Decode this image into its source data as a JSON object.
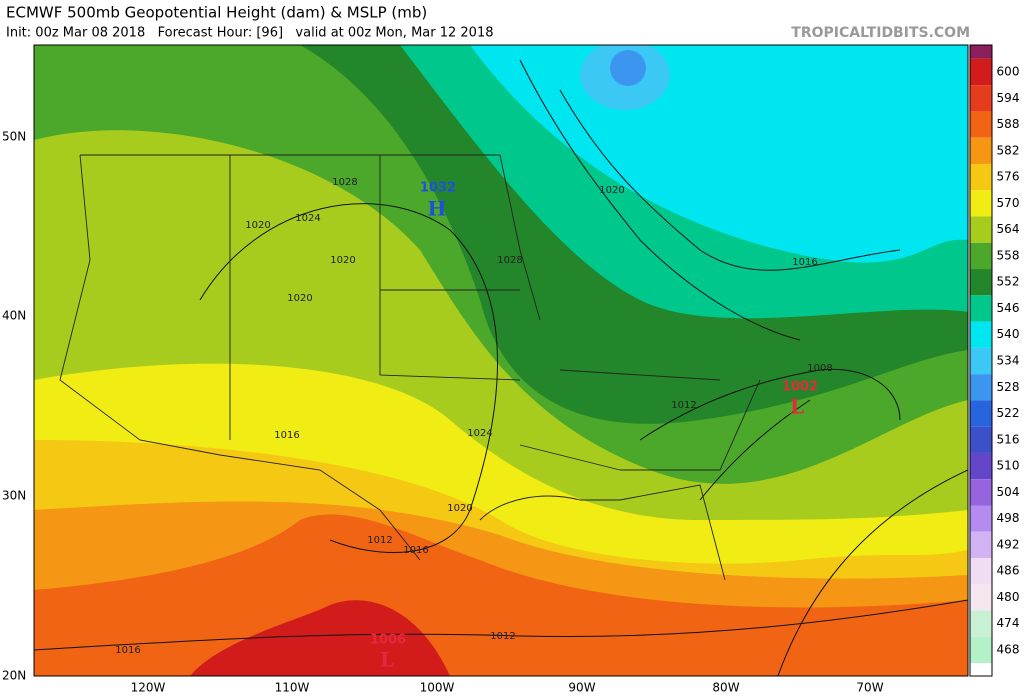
{
  "header": {
    "title": "ECMWF 500mb Geopotential Height (dam) & MSLP (mb)",
    "subtitle": "Init: 00z Mar 08 2018   Forecast Hour: [96]   valid at 00z Mon, Mar 12 2018",
    "site": "TROPICALTIDBITS.COM"
  },
  "map": {
    "lat_labels": [
      "50N",
      "40N",
      "30N",
      "20N"
    ],
    "lon_labels": [
      "120W",
      "110W",
      "100W",
      "90W",
      "80W",
      "70W"
    ],
    "contour_labels": [
      "1028",
      "1024",
      "1020",
      "1020",
      "1020",
      "1028",
      "1020",
      "1016",
      "1008",
      "1012",
      "1024",
      "1016",
      "1020",
      "1012",
      "1016",
      "1012",
      "1016"
    ],
    "highs": [
      {
        "pressure": "1032",
        "symbol": "H"
      }
    ],
    "lows": [
      {
        "pressure": "1002",
        "symbol": "L"
      },
      {
        "pressure": "1006",
        "symbol": "L"
      }
    ]
  },
  "colorbar": {
    "labels": [
      600,
      594,
      588,
      582,
      576,
      570,
      564,
      558,
      552,
      546,
      540,
      534,
      528,
      522,
      516,
      510,
      504,
      498,
      492,
      486,
      480,
      474,
      468
    ],
    "colors": [
      "#8c1e5a",
      "#d21c1c",
      "#e63c1e",
      "#f06414",
      "#f59614",
      "#f5c814",
      "#f0ec14",
      "#a8cc1e",
      "#4ca82a",
      "#24862a",
      "#00c88c",
      "#00e6f0",
      "#3cc8f5",
      "#3c96f0",
      "#2864dc",
      "#3c50c8",
      "#6446c8",
      "#9664dc",
      "#b48cf0",
      "#d2b4f5",
      "#f0dcf5",
      "#f5e6f0",
      "#c8f0d2",
      "#b4f0c8",
      "#dcfae6"
    ]
  }
}
